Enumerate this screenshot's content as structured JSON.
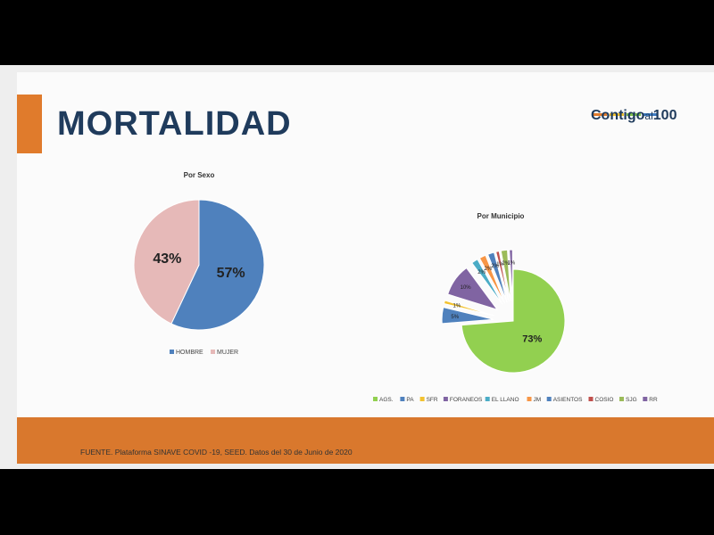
{
  "slide": {
    "title": "MORTALIDAD",
    "logo": {
      "main": "Contigo",
      "small": "al",
      "num": "100",
      "bar_colors": [
        "#e07b2c",
        "#f2c230",
        "#7cbf4a",
        "#3f7cc2"
      ]
    },
    "source": "FUENTE. Plataforma SINAVE COVID -19, SEED. Datos del 30 de Junio de 2020"
  },
  "chart_data": [
    {
      "type": "pie",
      "title": "Por Sexo",
      "categories": [
        "HOMBRE",
        "MUJER"
      ],
      "values": [
        57,
        43
      ],
      "labels": [
        "57%",
        "43%"
      ],
      "colors": [
        "#4f81bd",
        "#e6b9b8"
      ],
      "legend": "bottom"
    },
    {
      "type": "pie",
      "title": "Por Municipio",
      "categories": [
        "AGS.",
        "PA",
        "SFR",
        "FORANEOS",
        "EL LLANO",
        "JM",
        "ASIENTOS",
        "COSIO",
        "SJG",
        "RR"
      ],
      "values": [
        73,
        5,
        1,
        10,
        2,
        2,
        2,
        1,
        2,
        1
      ],
      "labels": [
        "73%",
        "5%",
        "1%",
        "10%",
        "2%",
        "2%",
        "2%",
        "1%",
        "2%",
        "1%"
      ],
      "colors": [
        "#92d050",
        "#4f81bd",
        "#f2c230",
        "#8064a2",
        "#4bacc6",
        "#f79646",
        "#4f81bd",
        "#c0504d",
        "#9bbb59",
        "#8064a2"
      ],
      "legend": "bottom"
    }
  ]
}
